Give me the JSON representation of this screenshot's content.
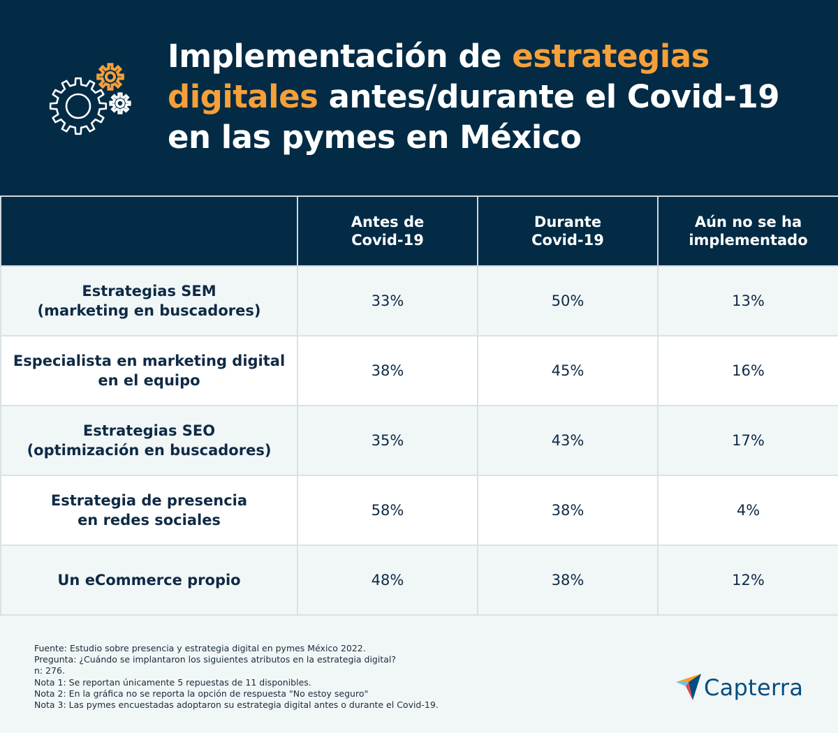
{
  "title": {
    "part1": "Implementación de ",
    "highlight1": "estrategias",
    "highlight2": "digitales",
    "part2": " antes/durante el Covid-19",
    "part3": "en las pymes en México"
  },
  "icons": {
    "gears": "gears-icon",
    "logo": "capterra-logo-icon"
  },
  "colors": {
    "header_bg": "#032b45",
    "accent": "#f5a03a",
    "row_alt": "#f1f6f7",
    "text": "#0e2a45",
    "logo_blue": "#044d80"
  },
  "chart_data": {
    "type": "table",
    "title": "Implementación de estrategias digitales antes/durante el Covid-19 en las pymes en México",
    "columns": [
      "",
      "Antes de\nCovid-19",
      "Durante\nCovid-19",
      "Aún no se ha\nimplementado"
    ],
    "rows": [
      {
        "label": "Estrategias SEM\n(marketing en buscadores)",
        "values": [
          "33%",
          "50%",
          "13%"
        ]
      },
      {
        "label": "Especialista en marketing digital\nen el equipo",
        "values": [
          "38%",
          "45%",
          "16%"
        ]
      },
      {
        "label": "Estrategias SEO\n(optimización en buscadores)",
        "values": [
          "35%",
          "43%",
          "17%"
        ]
      },
      {
        "label": "Estrategia de presencia\nen redes sociales",
        "values": [
          "58%",
          "38%",
          "4%"
        ]
      },
      {
        "label": "Un eCommerce propio",
        "values": [
          "48%",
          "38%",
          "12%"
        ]
      }
    ]
  },
  "notes": [
    "Fuente: Estudio sobre presencia y estrategia digital en pymes México 2022.",
    "Pregunta: ¿Cuándo se implantaron los siguientes atributos en la estrategia digital?",
    "n: 276.",
    "Nota 1: Se reportan únicamente 5 repuestas de 11 disponibles.",
    "Nota 2: En la gráfica no se reporta la opción de respuesta \"No estoy seguro\"",
    "Nota 3: Las pymes encuestadas adoptaron su estrategia digital antes o durante el Covid-19."
  ],
  "logo": {
    "text": "Capterra"
  }
}
